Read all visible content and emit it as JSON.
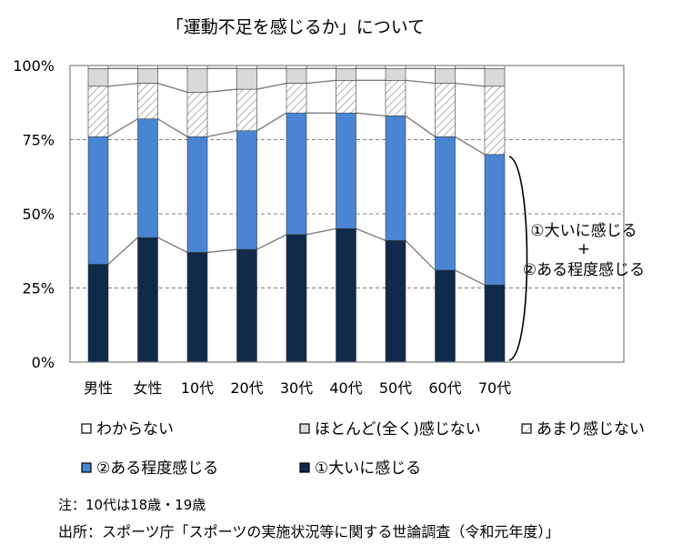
{
  "chart_data": {
    "type": "bar",
    "stacked": true,
    "title": "「運動不足を感じるか」について",
    "categories": [
      "男性",
      "女性",
      "10代",
      "20代",
      "30代",
      "40代",
      "50代",
      "60代",
      "70代"
    ],
    "y_ticks": [
      "0%",
      "25%",
      "50%",
      "75%",
      "100%"
    ],
    "ylim": [
      0,
      100
    ],
    "grid": "dashed horizontal at 25%, 50%, 75%",
    "legend_position": "bottom",
    "series": [
      {
        "name": "①大いに感じる",
        "color": "#0f2a4a",
        "pattern": "solid",
        "values": [
          33,
          42,
          37,
          38,
          43,
          45,
          41,
          31,
          26
        ]
      },
      {
        "name": "②ある程度感じる",
        "color": "#4a85d4",
        "pattern": "solid",
        "values": [
          43,
          40,
          39,
          40,
          41,
          39,
          42,
          45,
          44
        ]
      },
      {
        "name": "あまり感じない",
        "color": "#ffffff",
        "pattern": "hatch",
        "values": [
          17,
          12,
          15,
          14,
          10,
          11,
          12,
          18,
          23
        ]
      },
      {
        "name": "ほとんど(全く)感じない",
        "color": "#d9d9d9",
        "pattern": "solid",
        "values": [
          6,
          5,
          8,
          7,
          5,
          4,
          4,
          5,
          6
        ]
      },
      {
        "name": "わからない",
        "color": "#ffffff",
        "pattern": "solid",
        "values": [
          1,
          1,
          1,
          1,
          1,
          1,
          1,
          1,
          1
        ]
      }
    ],
    "legend_order": [
      "わからない",
      "ほとんど(全く)感じない",
      "あまり感じない",
      "②ある程度感じる",
      "①大いに感じる"
    ],
    "annotation": {
      "line1": "①大いに感じる",
      "line2": "+",
      "line3": "②ある程度感じる"
    }
  },
  "notes": {
    "note": "注：10代は18歳・19歳",
    "source": "出所：スポーツ庁「スポーツの実施状況等に関する世論調査（令和元年度）」"
  }
}
